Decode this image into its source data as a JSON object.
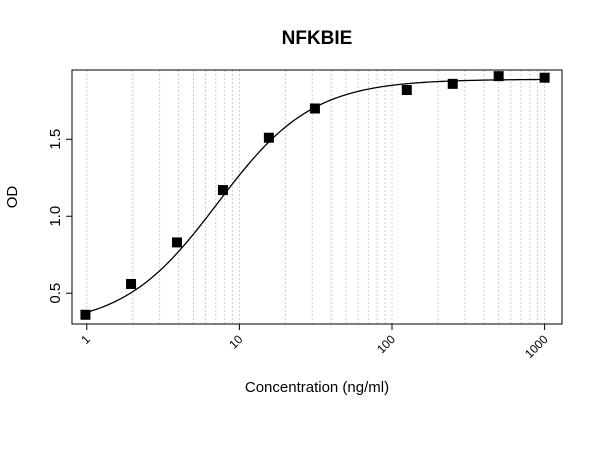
{
  "chart_data": {
    "type": "scatter",
    "title": "NFKBIE",
    "xlabel": "Concentration (ng/ml)",
    "ylabel": "OD",
    "x_scale": "log",
    "xlim": [
      0.8,
      1300
    ],
    "ylim": [
      0.3,
      1.95
    ],
    "x_ticks": [
      1,
      10,
      100,
      1000
    ],
    "x_tick_labels": [
      "1",
      "10",
      "100",
      "1000"
    ],
    "y_ticks": [
      0.5,
      1.0,
      1.5
    ],
    "y_tick_labels": [
      "0.5",
      "1.0",
      "1.5"
    ],
    "grid": "vertical dotted at log minor ticks",
    "points": {
      "x": [
        0.98,
        1.95,
        3.9,
        7.8,
        15.6,
        31.25,
        125,
        250,
        500,
        1000
      ],
      "y": [
        0.36,
        0.56,
        0.83,
        1.17,
        1.51,
        1.7,
        1.82,
        1.86,
        1.91,
        1.9
      ]
    },
    "fit_curve": {
      "model": "4PL",
      "bottom": 0.28,
      "top": 1.89,
      "ec50": 7.2,
      "hill": 1.4
    },
    "colors": {
      "points": "#000000",
      "curve": "#000000",
      "grid": "#cccccc"
    }
  }
}
